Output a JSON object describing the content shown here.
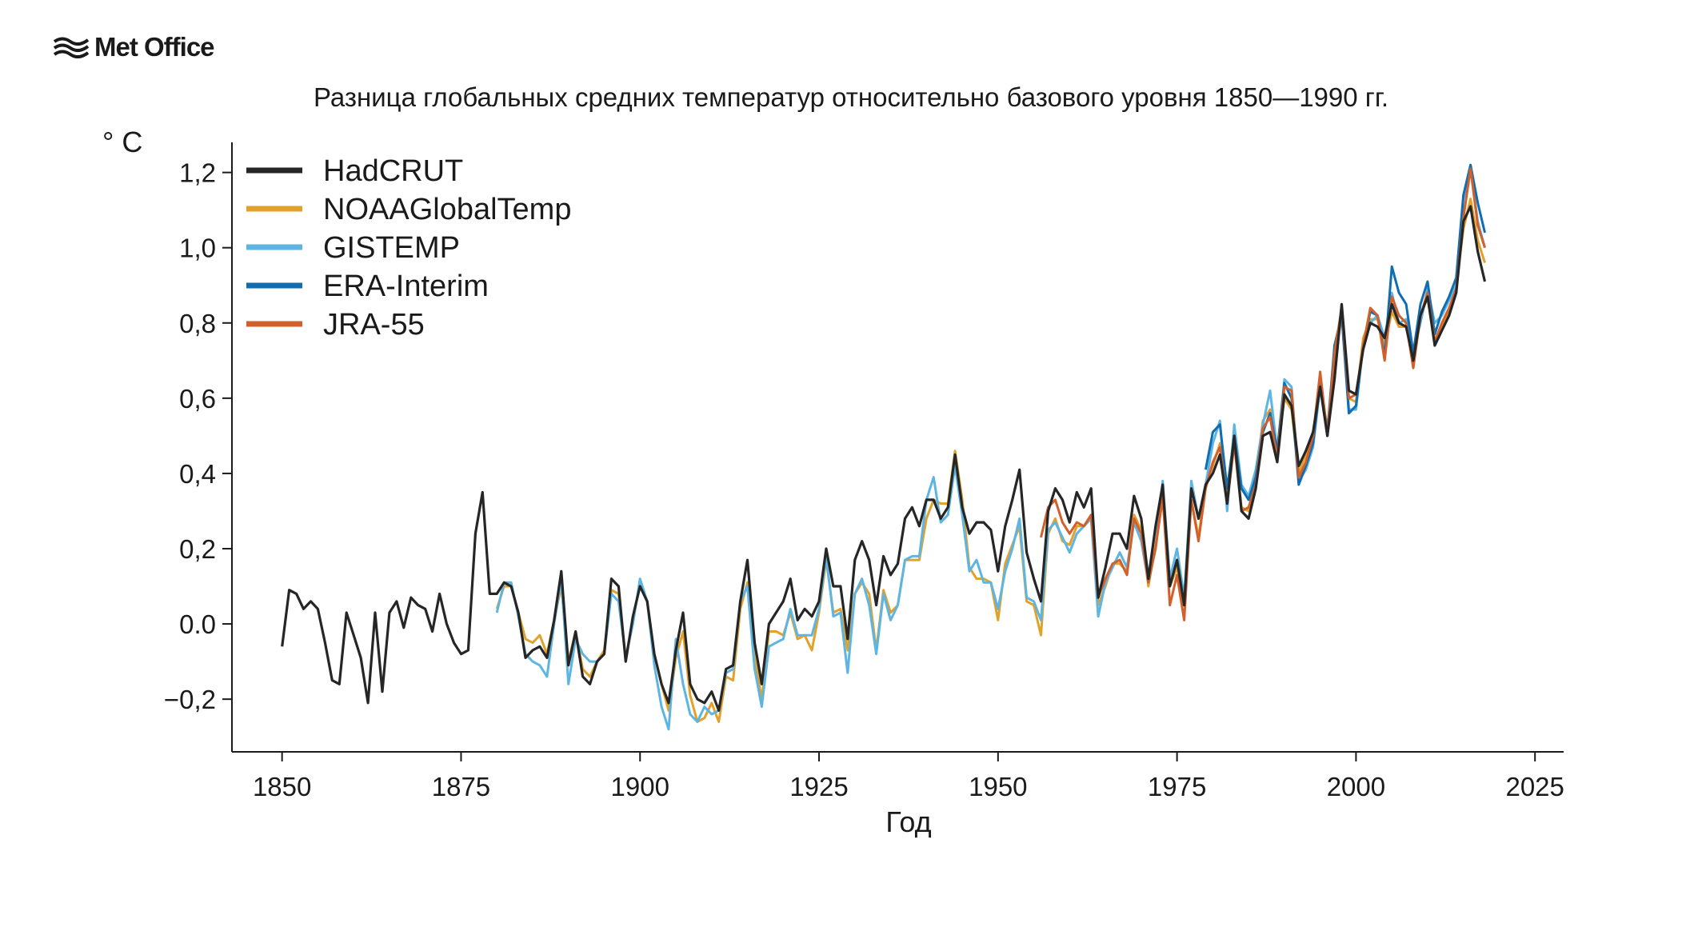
{
  "logo": {
    "text": "Met Office"
  },
  "colors": {
    "HadCRUT": "#262626",
    "NOAAGlobalTemp": "#e2a12b",
    "GISTEMP": "#5db5e3",
    "ERA-Interim": "#0f6db0",
    "JRA-55": "#d35f2a"
  },
  "chart_data": {
    "type": "line",
    "title": "Разница глобальных средних температур относительно базового уровня 1850—1990 гг.",
    "xlabel": "Год",
    "ylabel": "° C",
    "xlim": [
      1843,
      2029
    ],
    "ylim": [
      -0.34,
      1.28
    ],
    "xticks": [
      1850,
      1875,
      1900,
      1925,
      1950,
      1975,
      2000,
      2025
    ],
    "yticks": [
      -0.2,
      0.0,
      0.2,
      0.4,
      0.6,
      0.8,
      1.0,
      1.2
    ],
    "ytick_labels": [
      "−0,2",
      "0.0",
      "0,2",
      "0,4",
      "0,6",
      "0,8",
      "1,0",
      "1,2"
    ],
    "legend_position": "top-left",
    "grid": false,
    "series": [
      {
        "name": "HadCRUT",
        "start_year": 1850,
        "values": [
          -0.06,
          0.09,
          0.08,
          0.04,
          0.06,
          0.04,
          -0.05,
          -0.15,
          -0.16,
          0.03,
          -0.03,
          -0.09,
          -0.21,
          0.03,
          -0.18,
          0.03,
          0.06,
          -0.01,
          0.07,
          0.05,
          0.04,
          -0.02,
          0.08,
          0.0,
          -0.05,
          -0.08,
          -0.07,
          0.24,
          0.35,
          0.08,
          0.08,
          0.11,
          0.1,
          0.03,
          -0.09,
          -0.07,
          -0.06,
          -0.09,
          0.01,
          0.14,
          -0.11,
          -0.02,
          -0.14,
          -0.16,
          -0.1,
          -0.08,
          0.12,
          0.1,
          -0.1,
          0.02,
          0.1,
          0.06,
          -0.08,
          -0.16,
          -0.21,
          -0.07,
          0.03,
          -0.16,
          -0.2,
          -0.21,
          -0.18,
          -0.23,
          -0.12,
          -0.11,
          0.06,
          0.17,
          -0.05,
          -0.16,
          0.0,
          0.03,
          0.06,
          0.12,
          0.01,
          0.04,
          0.02,
          0.06,
          0.2,
          0.1,
          0.1,
          -0.04,
          0.17,
          0.22,
          0.17,
          0.05,
          0.18,
          0.13,
          0.16,
          0.28,
          0.31,
          0.26,
          0.33,
          0.33,
          0.28,
          0.31,
          0.45,
          0.31,
          0.24,
          0.27,
          0.27,
          0.25,
          0.14,
          0.26,
          0.33,
          0.41,
          0.19,
          0.12,
          0.06,
          0.3,
          0.36,
          0.33,
          0.27,
          0.35,
          0.31,
          0.36,
          0.07,
          0.15,
          0.24,
          0.24,
          0.2,
          0.34,
          0.28,
          0.12,
          0.26,
          0.37,
          0.1,
          0.17,
          0.05,
          0.36,
          0.28,
          0.37,
          0.4,
          0.45,
          0.32,
          0.5,
          0.3,
          0.28,
          0.36,
          0.5,
          0.51,
          0.43,
          0.61,
          0.58,
          0.42,
          0.46,
          0.51,
          0.63,
          0.5,
          0.65,
          0.85,
          0.62,
          0.61,
          0.73,
          0.8,
          0.79,
          0.76,
          0.85,
          0.8,
          0.79,
          0.7,
          0.82,
          0.87,
          0.74,
          0.78,
          0.82,
          0.88,
          1.07,
          1.11,
          0.99,
          0.91
        ]
      },
      {
        "name": "NOAAGlobalTemp",
        "start_year": 1880,
        "values": [
          0.04,
          0.1,
          0.1,
          0.03,
          -0.04,
          -0.05,
          -0.03,
          -0.08,
          0.01,
          0.1,
          -0.1,
          -0.02,
          -0.12,
          -0.14,
          -0.1,
          -0.07,
          0.09,
          0.08,
          -0.09,
          0.01,
          0.11,
          0.06,
          -0.08,
          -0.16,
          -0.23,
          -0.09,
          -0.02,
          -0.19,
          -0.26,
          -0.25,
          -0.21,
          -0.26,
          -0.14,
          -0.15,
          0.04,
          0.11,
          -0.09,
          -0.2,
          -0.02,
          -0.02,
          -0.03,
          0.03,
          -0.04,
          -0.03,
          -0.07,
          0.03,
          0.17,
          0.03,
          0.04,
          -0.07,
          0.08,
          0.11,
          0.08,
          -0.07,
          0.09,
          0.03,
          0.05,
          0.17,
          0.17,
          0.17,
          0.28,
          0.33,
          0.32,
          0.32,
          0.46,
          0.33,
          0.15,
          0.12,
          0.12,
          0.11,
          0.01,
          0.16,
          0.21,
          0.26,
          0.06,
          0.05,
          -0.03,
          0.24,
          0.28,
          0.22,
          0.21,
          0.26,
          0.26,
          0.28,
          0.05,
          0.1,
          0.16,
          0.16,
          0.14,
          0.29,
          0.25,
          0.1,
          0.21,
          0.33,
          0.1,
          0.15,
          0.05,
          0.33,
          0.23,
          0.37,
          0.42,
          0.48,
          0.33,
          0.48,
          0.31,
          0.3,
          0.39,
          0.54,
          0.57,
          0.46,
          0.6,
          0.57,
          0.4,
          0.45,
          0.5,
          0.64,
          0.52,
          0.69,
          0.82,
          0.6,
          0.59,
          0.76,
          0.81,
          0.81,
          0.74,
          0.83,
          0.79,
          0.79,
          0.71,
          0.82,
          0.87,
          0.75,
          0.79,
          0.83,
          0.9,
          1.05,
          1.13,
          1.02,
          0.96
        ]
      },
      {
        "name": "GISTEMP",
        "start_year": 1880,
        "values": [
          0.03,
          0.11,
          0.11,
          0.02,
          -0.08,
          -0.1,
          -0.11,
          -0.14,
          0.0,
          0.12,
          -0.16,
          -0.04,
          -0.08,
          -0.1,
          -0.1,
          -0.08,
          0.08,
          0.06,
          -0.09,
          0.0,
          0.12,
          0.06,
          -0.11,
          -0.22,
          -0.28,
          -0.04,
          -0.16,
          -0.24,
          -0.26,
          -0.22,
          -0.24,
          -0.23,
          -0.13,
          -0.12,
          0.06,
          0.1,
          -0.12,
          -0.22,
          -0.06,
          -0.05,
          -0.04,
          0.04,
          -0.03,
          -0.03,
          -0.03,
          0.04,
          0.18,
          0.02,
          0.03,
          -0.13,
          0.08,
          0.12,
          0.05,
          -0.08,
          0.08,
          0.01,
          0.05,
          0.17,
          0.18,
          0.18,
          0.33,
          0.39,
          0.27,
          0.29,
          0.42,
          0.29,
          0.14,
          0.17,
          0.11,
          0.11,
          0.04,
          0.14,
          0.2,
          0.28,
          0.07,
          0.06,
          0.01,
          0.25,
          0.27,
          0.23,
          0.19,
          0.24,
          0.26,
          0.28,
          0.02,
          0.11,
          0.15,
          0.19,
          0.15,
          0.27,
          0.22,
          0.11,
          0.2,
          0.38,
          0.12,
          0.2,
          0.07,
          0.38,
          0.28,
          0.37,
          0.48,
          0.54,
          0.3,
          0.53,
          0.37,
          0.34,
          0.41,
          0.53,
          0.62,
          0.46,
          0.65,
          0.63,
          0.38,
          0.41,
          0.47,
          0.63,
          0.5,
          0.69,
          0.83,
          0.57,
          0.57,
          0.74,
          0.8,
          0.82,
          0.76,
          0.88,
          0.8,
          0.81,
          0.72,
          0.8,
          0.89,
          0.8,
          0.82,
          0.86,
          0.9,
          1.13,
          1.21,
          1.07,
          1.0
        ]
      },
      {
        "name": "ERA-Interim",
        "start_year": 1979,
        "values": [
          0.41,
          0.51,
          0.53,
          0.36,
          0.5,
          0.36,
          0.33,
          0.39,
          0.51,
          0.56,
          0.46,
          0.64,
          0.6,
          0.37,
          0.42,
          0.48,
          0.64,
          0.51,
          0.74,
          0.82,
          0.56,
          0.58,
          0.74,
          0.83,
          0.82,
          0.71,
          0.95,
          0.88,
          0.85,
          0.72,
          0.85,
          0.91,
          0.77,
          0.83,
          0.87,
          0.92,
          1.14,
          1.22,
          1.12,
          1.04
        ]
      },
      {
        "name": "JRA-55",
        "start_year": 1956,
        "values": [
          0.23,
          0.31,
          0.33,
          0.27,
          0.24,
          0.27,
          0.26,
          0.29,
          0.07,
          0.12,
          0.16,
          0.17,
          0.13,
          0.28,
          0.24,
          0.11,
          0.2,
          0.34,
          0.05,
          0.13,
          0.01,
          0.33,
          0.22,
          0.36,
          0.43,
          0.47,
          0.32,
          0.48,
          0.3,
          0.31,
          0.37,
          0.52,
          0.55,
          0.44,
          0.63,
          0.62,
          0.39,
          0.43,
          0.5,
          0.67,
          0.5,
          0.72,
          0.84,
          0.6,
          0.61,
          0.74,
          0.84,
          0.82,
          0.7,
          0.87,
          0.82,
          0.8,
          0.68,
          0.82,
          0.88,
          0.75,
          0.8,
          0.84,
          0.89,
          1.08,
          1.21,
          1.06,
          1.0
        ]
      }
    ]
  }
}
